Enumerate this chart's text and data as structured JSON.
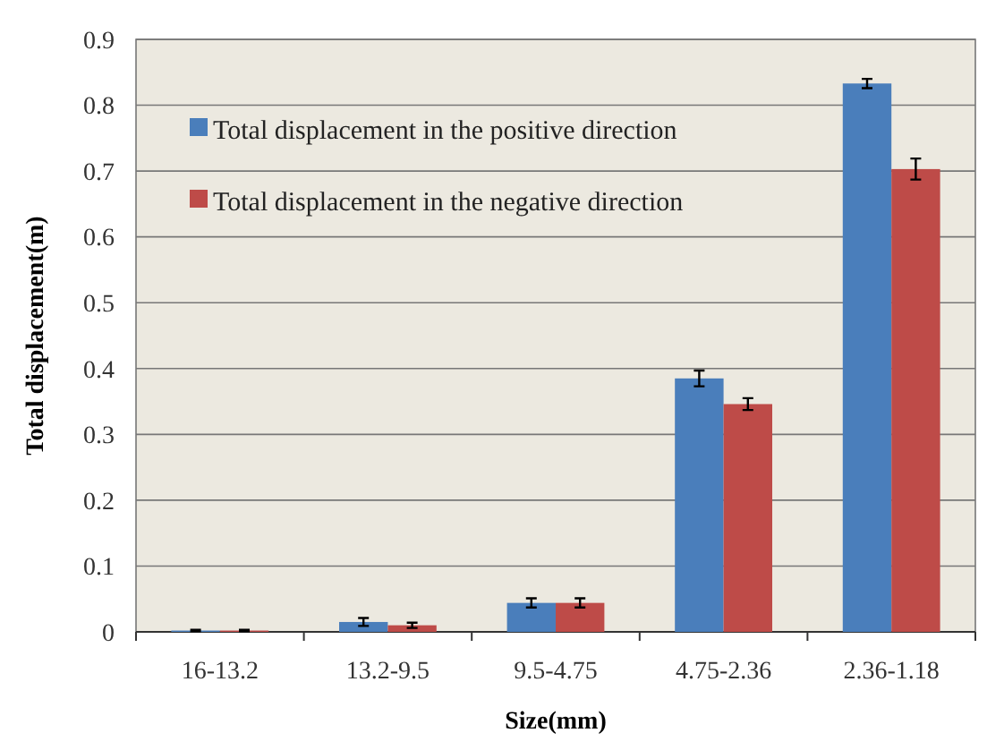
{
  "chart_data": {
    "type": "bar",
    "xlabel": "Size(mm)",
    "ylabel": "Total displacement(m)",
    "categories": [
      "16-13.2",
      "13.2-9.5",
      "9.5-4.75",
      "4.75-2.36",
      "2.36-1.18"
    ],
    "series": [
      {
        "name": "Total displacement in the positive direction",
        "color": "#4a7ebb",
        "values": [
          0.002,
          0.015,
          0.044,
          0.385,
          0.833
        ],
        "errors": [
          0.001,
          0.006,
          0.007,
          0.012,
          0.007
        ]
      },
      {
        "name": "Total displacement in the negative direction",
        "color": "#be4b48",
        "values": [
          0.002,
          0.01,
          0.044,
          0.346,
          0.703
        ],
        "errors": [
          0.001,
          0.004,
          0.007,
          0.009,
          0.016
        ]
      }
    ],
    "ylim": [
      0,
      0.9
    ],
    "yticks": [
      0,
      0.1,
      0.2,
      0.3,
      0.4,
      0.5,
      0.6,
      0.7,
      0.8,
      0.9
    ],
    "grid": "y",
    "legend": "top left"
  }
}
